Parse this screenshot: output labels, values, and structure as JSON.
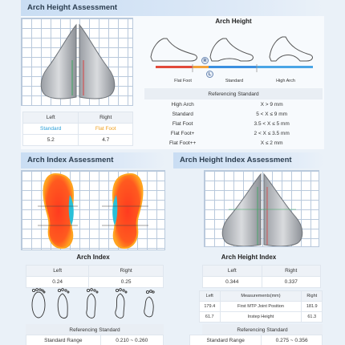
{
  "arch_height_assessment": {
    "header": "Arch Height Assessment",
    "table": {
      "headers": [
        "Left",
        "Right"
      ],
      "classification": [
        "Standard",
        "Flat Foot"
      ],
      "values": [
        "5.2",
        "4.7"
      ]
    }
  },
  "arch_height": {
    "title": "Arch Height",
    "markers": {
      "right": "R",
      "left": "L"
    },
    "scale_labels": [
      "Flat Foot",
      "Standard",
      "High Arch"
    ],
    "reference": {
      "header": "Referencing Standard",
      "rows": [
        {
          "name": "High Arch",
          "range": "X > 9 mm"
        },
        {
          "name": "Standard",
          "range": "5 < X ≤ 9 mm"
        },
        {
          "name": "Flat Foot",
          "range": "3.5 < X ≤ 5 mm"
        },
        {
          "name": "Flat Foot+",
          "range": "2 < X ≤ 3.5 mm"
        },
        {
          "name": "Flat Foot++",
          "range": "X ≤ 2 mm"
        }
      ]
    }
  },
  "arch_index_assessment": {
    "header": "Arch Index Assessment",
    "title": "Arch Index",
    "table": {
      "headers": [
        "Left",
        "Right"
      ],
      "values": [
        "0.24",
        "0.25"
      ]
    },
    "reference": {
      "header": "Referencing Standard",
      "label": "Standard Range",
      "value": "0.210 ~ 0.260"
    }
  },
  "arch_height_index_assessment": {
    "header": "Arch Height Index Assessment",
    "title": "Arch Height Index",
    "table": {
      "headers": [
        "Left",
        "Right"
      ],
      "values": [
        "0.344",
        "0.337"
      ]
    },
    "measurements": {
      "headers": [
        "Left",
        "Measurements(mm)",
        "Right"
      ],
      "rows": [
        {
          "left": "179.4",
          "name": "First MTP Joint Position",
          "right": "181.9"
        },
        {
          "left": "61.7",
          "name": "Instep Height",
          "right": "61.3"
        }
      ]
    },
    "reference": {
      "header": "Referencing Standard",
      "label": "Standard Range",
      "value": "0.275 ~ 0.356"
    }
  },
  "colors": {
    "accent_blue": "#2a9fd8",
    "accent_orange": "#f0a020",
    "header_bg": "#c9ddf3"
  }
}
